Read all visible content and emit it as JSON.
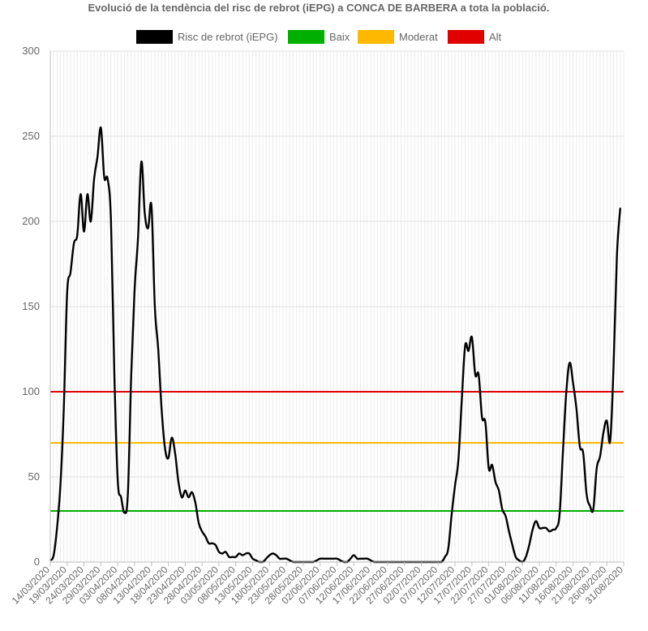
{
  "chart_data": {
    "type": "line",
    "title": "Evolució de la tendència del risc de rebrot (iEPG) a CONCA DE BARBERA a tota la població.",
    "legend": [
      {
        "name": "Risc de rebrot (iEPG)",
        "color": "#000000"
      },
      {
        "name": "Baix",
        "color": "#00b000"
      },
      {
        "name": "Moderat",
        "color": "#ffb800"
      },
      {
        "name": "Alt",
        "color": "#e00000"
      }
    ],
    "legend_position": "top-center",
    "grid": true,
    "ylim": [
      0,
      300
    ],
    "y_ticks": [
      0,
      50,
      100,
      150,
      200,
      250,
      300
    ],
    "x_tick_labels": [
      "14/03/2020",
      "19/03/2020",
      "24/03/2020",
      "29/03/2020",
      "03/04/2020",
      "08/04/2020",
      "13/04/2020",
      "18/04/2020",
      "23/04/2020",
      "28/04/2020",
      "03/05/2020",
      "08/05/2020",
      "13/05/2020",
      "18/05/2020",
      "23/05/2020",
      "28/05/2020",
      "02/06/2020",
      "07/06/2020",
      "12/06/2020",
      "17/06/2020",
      "22/06/2020",
      "27/06/2020",
      "02/07/2020",
      "07/07/2020",
      "12/07/2020",
      "17/07/2020",
      "22/07/2020",
      "27/07/2020",
      "01/08/2020",
      "06/08/2020",
      "11/08/2020",
      "16/08/2020",
      "21/08/2020",
      "26/08/2020",
      "31/08/2020"
    ],
    "x_start": "14/03/2020",
    "x_end": "31/08/2020",
    "thresholds": [
      {
        "name": "Baix",
        "value": 30,
        "color": "#00b000"
      },
      {
        "name": "Moderat",
        "value": 70,
        "color": "#ffb800"
      },
      {
        "name": "Alt",
        "value": 100,
        "color": "#e00000"
      }
    ],
    "series": [
      {
        "name": "Risc de rebrot (iEPG)",
        "color": "#000000",
        "points": [
          [
            "14/03/2020",
            1
          ],
          [
            "15/03/2020",
            4
          ],
          [
            "16/03/2020",
            20
          ],
          [
            "17/03/2020",
            45
          ],
          [
            "18/03/2020",
            90
          ],
          [
            "19/03/2020",
            158
          ],
          [
            "20/03/2020",
            170
          ],
          [
            "21/03/2020",
            187
          ],
          [
            "22/03/2020",
            192
          ],
          [
            "23/03/2020",
            216
          ],
          [
            "24/03/2020",
            194
          ],
          [
            "25/03/2020",
            216
          ],
          [
            "26/03/2020",
            200
          ],
          [
            "27/03/2020",
            225
          ],
          [
            "28/03/2020",
            238
          ],
          [
            "29/03/2020",
            255
          ],
          [
            "30/03/2020",
            226
          ],
          [
            "31/03/2020",
            225
          ],
          [
            "01/04/2020",
            200
          ],
          [
            "02/04/2020",
            110
          ],
          [
            "03/04/2020",
            48
          ],
          [
            "04/04/2020",
            38
          ],
          [
            "05/04/2020",
            29
          ],
          [
            "06/04/2020",
            40
          ],
          [
            "07/04/2020",
            110
          ],
          [
            "08/04/2020",
            160
          ],
          [
            "09/04/2020",
            190
          ],
          [
            "10/04/2020",
            235
          ],
          [
            "11/04/2020",
            205
          ],
          [
            "12/04/2020",
            196
          ],
          [
            "13/04/2020",
            209
          ],
          [
            "14/04/2020",
            150
          ],
          [
            "15/04/2020",
            125
          ],
          [
            "16/04/2020",
            90
          ],
          [
            "17/04/2020",
            67
          ],
          [
            "18/04/2020",
            61
          ],
          [
            "19/04/2020",
            73
          ],
          [
            "20/04/2020",
            64
          ],
          [
            "21/04/2020",
            47
          ],
          [
            "22/04/2020",
            38
          ],
          [
            "23/04/2020",
            42
          ],
          [
            "24/04/2020",
            38
          ],
          [
            "25/04/2020",
            41
          ],
          [
            "26/04/2020",
            35
          ],
          [
            "27/04/2020",
            23
          ],
          [
            "28/04/2020",
            18
          ],
          [
            "29/04/2020",
            15
          ],
          [
            "30/04/2020",
            11
          ],
          [
            "01/05/2020",
            11
          ],
          [
            "02/05/2020",
            10
          ],
          [
            "03/05/2020",
            6
          ],
          [
            "04/05/2020",
            5
          ],
          [
            "05/05/2020",
            6
          ],
          [
            "06/05/2020",
            3
          ],
          [
            "07/05/2020",
            3
          ],
          [
            "08/05/2020",
            3
          ],
          [
            "09/05/2020",
            5
          ],
          [
            "10/05/2020",
            4
          ],
          [
            "11/05/2020",
            5
          ],
          [
            "12/05/2020",
            5
          ],
          [
            "13/05/2020",
            2
          ],
          [
            "14/05/2020",
            1
          ],
          [
            "15/05/2020",
            0
          ],
          [
            "16/05/2020",
            0
          ],
          [
            "17/05/2020",
            2
          ],
          [
            "18/05/2020",
            4
          ],
          [
            "19/05/2020",
            5
          ],
          [
            "20/05/2020",
            4
          ],
          [
            "21/05/2020",
            2
          ],
          [
            "22/05/2020",
            2
          ],
          [
            "23/05/2020",
            2
          ],
          [
            "24/05/2020",
            1
          ],
          [
            "25/05/2020",
            0
          ],
          [
            "26/05/2020",
            0
          ],
          [
            "27/05/2020",
            0
          ],
          [
            "28/05/2020",
            0
          ],
          [
            "29/05/2020",
            0
          ],
          [
            "30/05/2020",
            0
          ],
          [
            "31/05/2020",
            0
          ],
          [
            "01/06/2020",
            1
          ],
          [
            "02/06/2020",
            2
          ],
          [
            "03/06/2020",
            2
          ],
          [
            "04/06/2020",
            2
          ],
          [
            "05/06/2020",
            2
          ],
          [
            "06/06/2020",
            2
          ],
          [
            "07/06/2020",
            2
          ],
          [
            "08/06/2020",
            1
          ],
          [
            "09/06/2020",
            0
          ],
          [
            "10/06/2020",
            0
          ],
          [
            "11/06/2020",
            2
          ],
          [
            "12/06/2020",
            4
          ],
          [
            "13/06/2020",
            2
          ],
          [
            "14/06/2020",
            2
          ],
          [
            "15/06/2020",
            2
          ],
          [
            "16/06/2020",
            2
          ],
          [
            "17/06/2020",
            1
          ],
          [
            "18/06/2020",
            0
          ],
          [
            "19/06/2020",
            0
          ],
          [
            "20/06/2020",
            0
          ],
          [
            "21/06/2020",
            0
          ],
          [
            "22/06/2020",
            0
          ],
          [
            "23/06/2020",
            0
          ],
          [
            "24/06/2020",
            0
          ],
          [
            "25/06/2020",
            0
          ],
          [
            "26/06/2020",
            0
          ],
          [
            "27/06/2020",
            0
          ],
          [
            "28/06/2020",
            0
          ],
          [
            "29/06/2020",
            0
          ],
          [
            "30/06/2020",
            0
          ],
          [
            "01/07/2020",
            0
          ],
          [
            "02/07/2020",
            0
          ],
          [
            "03/07/2020",
            0
          ],
          [
            "04/07/2020",
            0
          ],
          [
            "05/07/2020",
            0
          ],
          [
            "06/07/2020",
            0
          ],
          [
            "07/07/2020",
            0
          ],
          [
            "08/07/2020",
            0
          ],
          [
            "09/07/2020",
            3
          ],
          [
            "10/07/2020",
            8
          ],
          [
            "11/07/2020",
            28
          ],
          [
            "12/07/2020",
            45
          ],
          [
            "13/07/2020",
            60
          ],
          [
            "14/07/2020",
            95
          ],
          [
            "15/07/2020",
            127
          ],
          [
            "16/07/2020",
            124
          ],
          [
            "17/07/2020",
            132
          ],
          [
            "18/07/2020",
            110
          ],
          [
            "19/07/2020",
            110
          ],
          [
            "20/07/2020",
            85
          ],
          [
            "21/07/2020",
            82
          ],
          [
            "22/07/2020",
            55
          ],
          [
            "23/07/2020",
            57
          ],
          [
            "24/07/2020",
            47
          ],
          [
            "25/07/2020",
            42
          ],
          [
            "26/07/2020",
            31
          ],
          [
            "27/07/2020",
            27
          ],
          [
            "28/07/2020",
            18
          ],
          [
            "29/07/2020",
            10
          ],
          [
            "30/07/2020",
            3
          ],
          [
            "31/07/2020",
            1
          ],
          [
            "01/08/2020",
            0
          ],
          [
            "02/08/2020",
            3
          ],
          [
            "03/08/2020",
            10
          ],
          [
            "04/08/2020",
            19
          ],
          [
            "05/08/2020",
            24
          ],
          [
            "06/08/2020",
            20
          ],
          [
            "07/08/2020",
            20
          ],
          [
            "08/08/2020",
            20
          ],
          [
            "09/08/2020",
            18
          ],
          [
            "10/08/2020",
            19
          ],
          [
            "11/08/2020",
            20
          ],
          [
            "12/08/2020",
            28
          ],
          [
            "13/08/2020",
            65
          ],
          [
            "14/08/2020",
            100
          ],
          [
            "15/08/2020",
            117
          ],
          [
            "16/08/2020",
            105
          ],
          [
            "17/08/2020",
            90
          ],
          [
            "18/08/2020",
            68
          ],
          [
            "19/08/2020",
            64
          ],
          [
            "20/08/2020",
            40
          ],
          [
            "21/08/2020",
            33
          ],
          [
            "22/08/2020",
            31
          ],
          [
            "23/08/2020",
            55
          ],
          [
            "24/08/2020",
            62
          ],
          [
            "25/08/2020",
            76
          ],
          [
            "26/08/2020",
            83
          ],
          [
            "27/08/2020",
            71
          ],
          [
            "28/08/2020",
            115
          ],
          [
            "29/08/2020",
            180
          ],
          [
            "30/08/2020",
            208
          ]
        ]
      }
    ]
  }
}
